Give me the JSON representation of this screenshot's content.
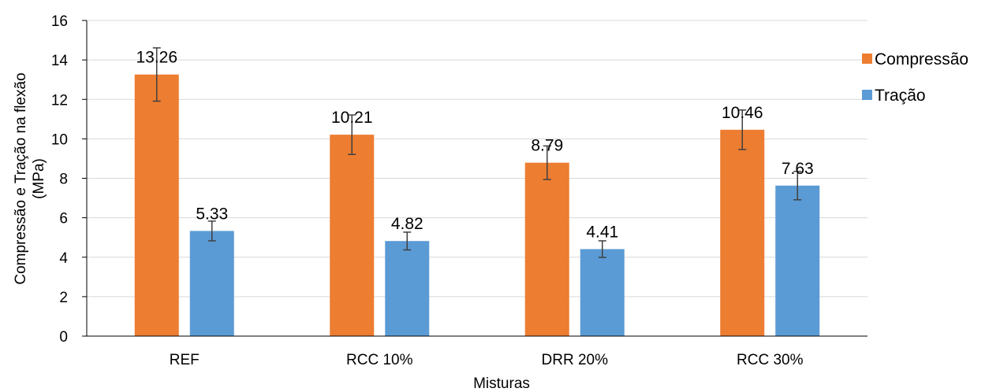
{
  "chart_data": {
    "type": "bar",
    "categories": [
      "REF",
      "RCC 10%",
      "DRR 20%",
      "RCC 30%"
    ],
    "series": [
      {
        "name": "Compressão",
        "color": "#ED7D31",
        "values": [
          13.26,
          10.21,
          8.79,
          10.46
        ],
        "labels": [
          "13.26",
          "10.21",
          "8.79",
          "10.46"
        ],
        "error": [
          1.35,
          1.0,
          0.85,
          1.0
        ]
      },
      {
        "name": "Tração",
        "color": "#5B9BD5",
        "values": [
          5.33,
          4.82,
          4.41,
          7.63
        ],
        "labels": [
          "5.33",
          "4.82",
          "4.41",
          "7.63"
        ],
        "error": [
          0.5,
          0.45,
          0.42,
          0.72
        ]
      }
    ],
    "title": "",
    "xlabel": "Misturas",
    "ylabel_line1": "Compressão e Tração na flexão",
    "ylabel_line2": "(MPa)",
    "ylim": [
      0,
      16
    ],
    "yticks": [
      "0",
      "2",
      "4",
      "6",
      "8",
      "10",
      "12",
      "14",
      "16"
    ],
    "grid": true,
    "legend_position": "right"
  }
}
